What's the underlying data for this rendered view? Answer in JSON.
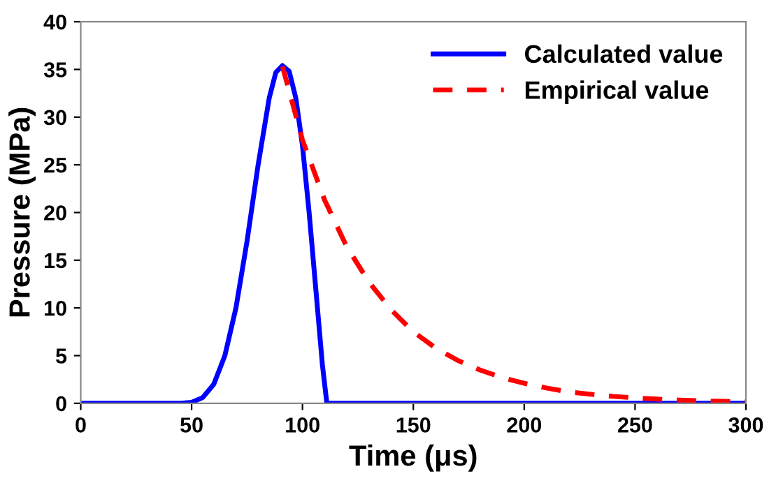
{
  "chart_data": {
    "type": "line",
    "xlabel": "Time (μs)",
    "ylabel": "Pressure (MPa)",
    "xlim": [
      0,
      300
    ],
    "ylim": [
      0,
      40
    ],
    "xticks": [
      0,
      50,
      100,
      150,
      200,
      250,
      300
    ],
    "yticks": [
      0,
      5,
      10,
      15,
      20,
      25,
      30,
      35,
      40
    ],
    "grid": false,
    "legend": "top right",
    "series": [
      {
        "name": "Calculated value",
        "color": "#0000ff",
        "line_style": "solid",
        "x": [
          0,
          45,
          50,
          55,
          60,
          65,
          70,
          75,
          80,
          85,
          88,
          91,
          94,
          97,
          100,
          103,
          106,
          109,
          111,
          300
        ],
        "values": [
          0,
          0,
          0.1,
          0.6,
          2,
          5,
          10,
          17,
          25,
          32,
          34.7,
          35.4,
          34.8,
          32,
          27,
          20,
          12,
          4,
          0,
          0
        ]
      },
      {
        "name": "Empirical value",
        "color": "#ff0000",
        "line_style": "dashed",
        "x": [
          91,
          100,
          110,
          120,
          130,
          140,
          150,
          160,
          170,
          180,
          190,
          200,
          210,
          220,
          230,
          240,
          250,
          260,
          270,
          280,
          290,
          300
        ],
        "values": [
          35.3,
          27.6,
          21.3,
          16.4,
          12.7,
          9.8,
          7.5,
          5.8,
          4.5,
          3.5,
          2.7,
          2.1,
          1.6,
          1.2,
          0.95,
          0.73,
          0.57,
          0.44,
          0.34,
          0.26,
          0.2,
          0.15
        ]
      }
    ]
  }
}
